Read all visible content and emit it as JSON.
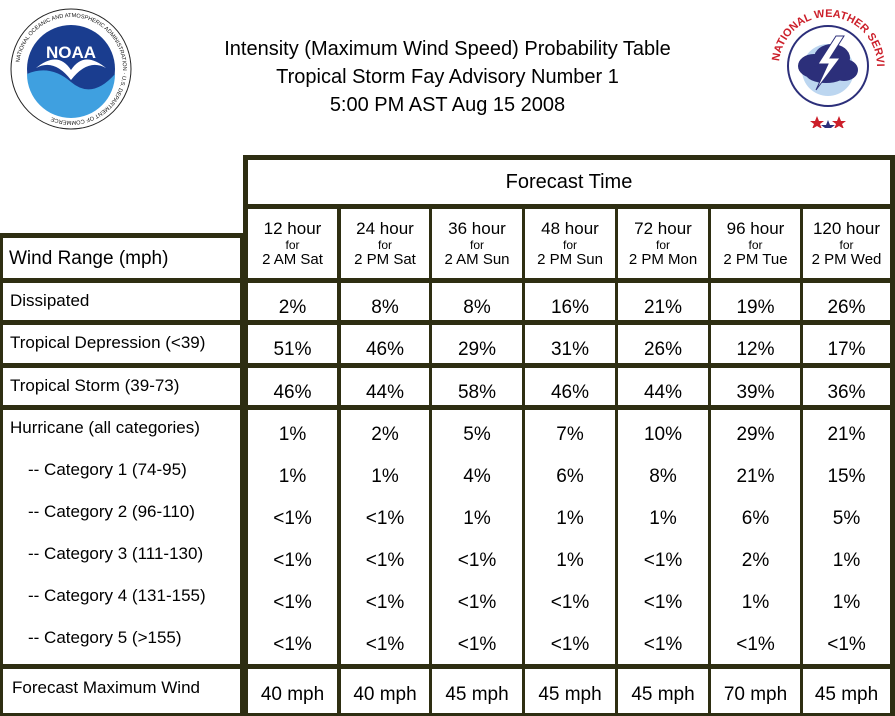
{
  "header": {
    "title_line1": "Intensity (Maximum Wind Speed) Probability Table",
    "title_line2": "Tropical Storm Fay Advisory Number 1",
    "title_line3": "5:00 PM AST Aug 15 2008"
  },
  "logos": {
    "noaa_text": "NOAA",
    "noaa_ring_text": "NATIONAL OCEANIC AND ATMOSPHERIC ADMINISTRATION · U.S. DEPARTMENT OF COMMERCE",
    "nws_ring_text": "NATIONAL WEATHER SERVICE"
  },
  "table": {
    "group_header": "Forecast Time",
    "row_header": "Wind Range (mph)",
    "columns": [
      {
        "hour": "12 hour",
        "for": "for",
        "time": "2 AM Sat"
      },
      {
        "hour": "24 hour",
        "for": "for",
        "time": "2 PM Sat"
      },
      {
        "hour": "36 hour",
        "for": "for",
        "time": "2 AM Sun"
      },
      {
        "hour": "48 hour",
        "for": "for",
        "time": "2 PM Sun"
      },
      {
        "hour": "72 hour",
        "for": "for",
        "time": "2 PM Mon"
      },
      {
        "hour": "96 hour",
        "for": "for",
        "time": "2 PM Tue"
      },
      {
        "hour": "120 hour",
        "for": "for",
        "time": "2 PM Wed"
      }
    ],
    "rows": [
      {
        "label": "Dissipated",
        "values": [
          "2%",
          "8%",
          "8%",
          "16%",
          "21%",
          "19%",
          "26%"
        ]
      },
      {
        "label": "Tropical Depression (<39)",
        "values": [
          "51%",
          "46%",
          "29%",
          "31%",
          "26%",
          "12%",
          "17%"
        ]
      },
      {
        "label": "Tropical Storm (39-73)",
        "values": [
          "46%",
          "44%",
          "58%",
          "46%",
          "44%",
          "39%",
          "36%"
        ]
      },
      {
        "label": "Hurricane (all categories)",
        "values": [
          "1%",
          "2%",
          "5%",
          "7%",
          "10%",
          "29%",
          "21%"
        ]
      },
      {
        "label": "-- Category 1 (74-95)",
        "values": [
          "1%",
          "1%",
          "4%",
          "6%",
          "8%",
          "21%",
          "15%"
        ]
      },
      {
        "label": "-- Category 2 (96-110)",
        "values": [
          "<1%",
          "<1%",
          "1%",
          "1%",
          "1%",
          "6%",
          "5%"
        ]
      },
      {
        "label": "-- Category 3 (111-130)",
        "values": [
          "<1%",
          "<1%",
          "<1%",
          "1%",
          "<1%",
          "2%",
          "1%"
        ]
      },
      {
        "label": "-- Category 4 (131-155)",
        "values": [
          "<1%",
          "<1%",
          "<1%",
          "<1%",
          "<1%",
          "1%",
          "1%"
        ]
      },
      {
        "label": "-- Category 5 (>155)",
        "values": [
          "<1%",
          "<1%",
          "<1%",
          "<1%",
          "<1%",
          "<1%",
          "<1%"
        ]
      }
    ],
    "footer": {
      "label": "Forecast Maximum Wind",
      "values": [
        "40 mph",
        "40 mph",
        "45 mph",
        "45 mph",
        "45 mph",
        "70 mph",
        "45 mph"
      ]
    }
  },
  "colors": {
    "border": "#2e2e12",
    "noaa_blue_dark": "#1a3d8f",
    "noaa_blue_light": "#3fa0e0",
    "nws_red": "#cc1f2a",
    "nws_cloud": "#2c2f7a"
  }
}
